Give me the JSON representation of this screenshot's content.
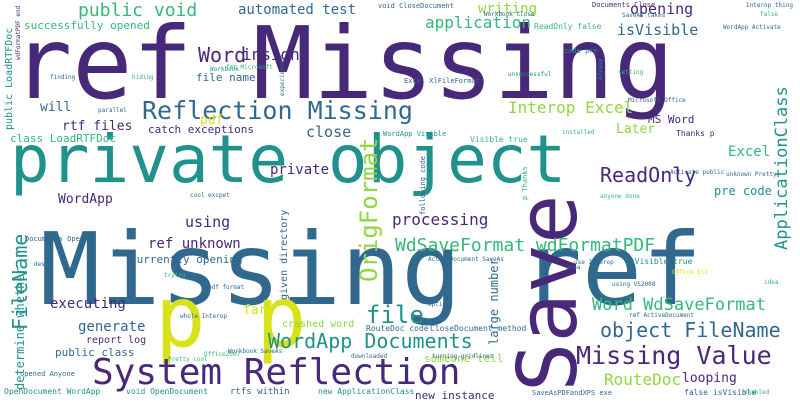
{
  "palette": {
    "purple": "#482878",
    "blue": "#31688e",
    "teal": "#21918c",
    "green": "#35b779",
    "lime": "#90d743",
    "yellow": "#d8e219"
  },
  "words": [
    "ref Missing",
    "private object",
    "Missing ref",
    "Save",
    "p p",
    "System Reflection",
    "Reflection Missing",
    "Missing Value",
    "OrigFormat",
    "file",
    "WordApp Documents",
    "object FileName",
    "FileName",
    "ReadOnly",
    "WdSaveFormat wdFormatPDF",
    "Word WdSaveFormat",
    "public void",
    "Word",
    "insight",
    "Interop Excel",
    "application",
    "ApplicationClass",
    "processing",
    "RouteDoc",
    "isVisible",
    "automated test",
    "opening",
    "writing",
    "close",
    "executing",
    "generate",
    "using",
    "private",
    "ref unknown",
    "Excel",
    "WordApp",
    "rtf files",
    "will",
    "pdf",
    "Later",
    "MS Word",
    "far",
    "looping",
    "catch exceptions",
    "currently opening",
    "determine whether",
    "given directory",
    "large number",
    "pre code",
    "file name",
    "successfully opened",
    "public class",
    "someone tell",
    "new instance",
    "public LoadRTFDoc",
    "class LoadRTFDoc",
    "crashed word",
    "report log",
    "Documents Close",
    "void CloseDocument",
    "Thanks p",
    "Visible true",
    "isVisible true",
    "WordApp Visible",
    "Excel XlFileFormat",
    "SaveAs takes",
    "Activate public",
    "Interop thing",
    "WordApp Activate",
    "code pre",
    "unsuccessful",
    "Anyway",
    "Microsoft Office",
    "setting",
    "unknown Pretty",
    "installed",
    "anyone done",
    "following code",
    "p Thanks",
    "use Interop",
    "ActiveDocument SaveAs",
    "Documents Open",
    "cool excpet",
    "finding",
    "hiding",
    "parallel",
    "experience",
    "Workbook",
    "fmt Microsoft",
    "wdFormatPDF end",
    "Office2007",
    "Pretty cool",
    "whole Interop",
    "pdf format",
    "trying",
    "dest",
    "fmt",
    "RouteDoc code",
    "CloseDocument method",
    "Workbook SaveAs",
    "downloaded",
    "turning gridlines",
    "using VS2008",
    "Office bit",
    "area",
    "idea",
    "option",
    "ref ActiveDocument",
    "new ApplicationClass",
    "SaveAsPDFandXPS exe",
    "false isVisible",
    "enabled",
    "ReadOnly false",
    "opened Anyone",
    "OpenDocument WordApp",
    "void OpenDocument",
    "rtfs within",
    "Workbook Close",
    "false"
  ]
}
